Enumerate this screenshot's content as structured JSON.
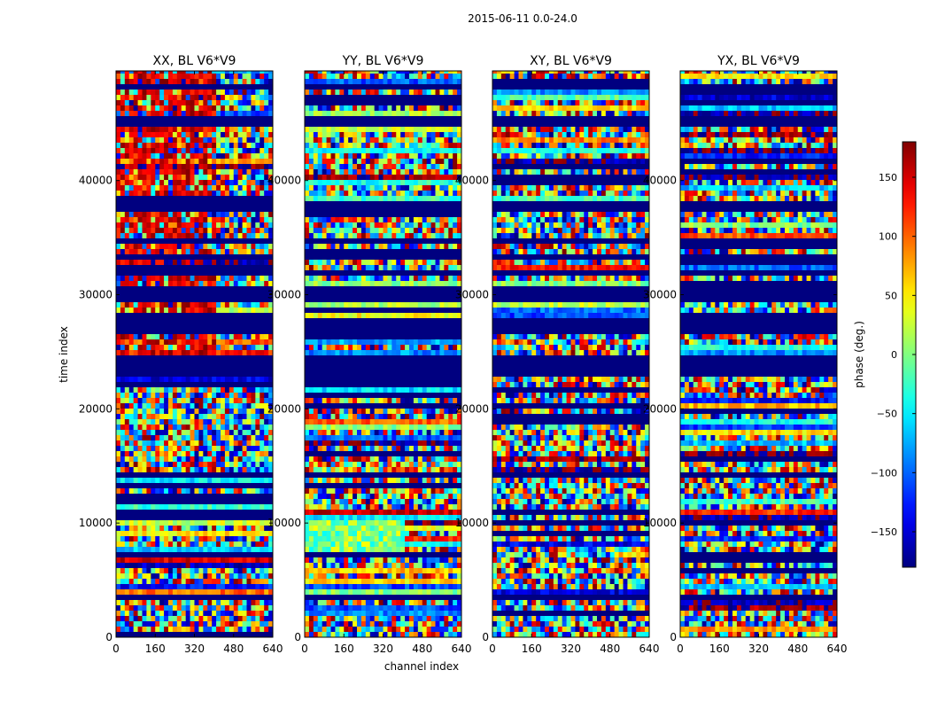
{
  "chart_data": {
    "type": "heatmap",
    "suptitle": "2015-06-11 0.0-24.0",
    "xlabel": "channel index",
    "ylabel": "time index",
    "xlim": [
      0,
      640
    ],
    "ylim": [
      0,
      49600
    ],
    "x_ticks": [
      0,
      160,
      320,
      480,
      640
    ],
    "y_ticks": [
      0,
      10000,
      20000,
      30000,
      40000
    ],
    "x_tick_labels": [
      "0",
      "160",
      "320",
      "480",
      "640"
    ],
    "y_tick_labels": [
      "0",
      "10000",
      "20000",
      "30000",
      "40000"
    ],
    "panels": [
      {
        "title": "XX, BL V6*V9"
      },
      {
        "title": "YY, BL V6*V9"
      },
      {
        "title": "XY, BL V6*V9"
      },
      {
        "title": "YX, BL V6*V9"
      }
    ],
    "colorbar": {
      "label": "phase (deg.)",
      "range": [
        -180,
        180
      ],
      "ticks": [
        -150,
        -100,
        -50,
        0,
        50,
        100,
        150
      ],
      "tick_labels": [
        "−150",
        "−100",
        "−50",
        "0",
        "50",
        "100",
        "150"
      ],
      "colormap": "jet"
    },
    "flagged_time_ranges": [
      [
        22900,
        24900
      ],
      [
        29800,
        30900
      ],
      [
        27000,
        28200
      ],
      [
        31800,
        32300
      ],
      [
        33400,
        33900
      ],
      [
        34600,
        35300
      ],
      [
        37700,
        38400
      ],
      [
        44800,
        45800
      ],
      [
        48200,
        48700
      ],
      [
        3600,
        4000
      ],
      [
        14200,
        14700
      ],
      [
        19600,
        19900
      ]
    ]
  }
}
